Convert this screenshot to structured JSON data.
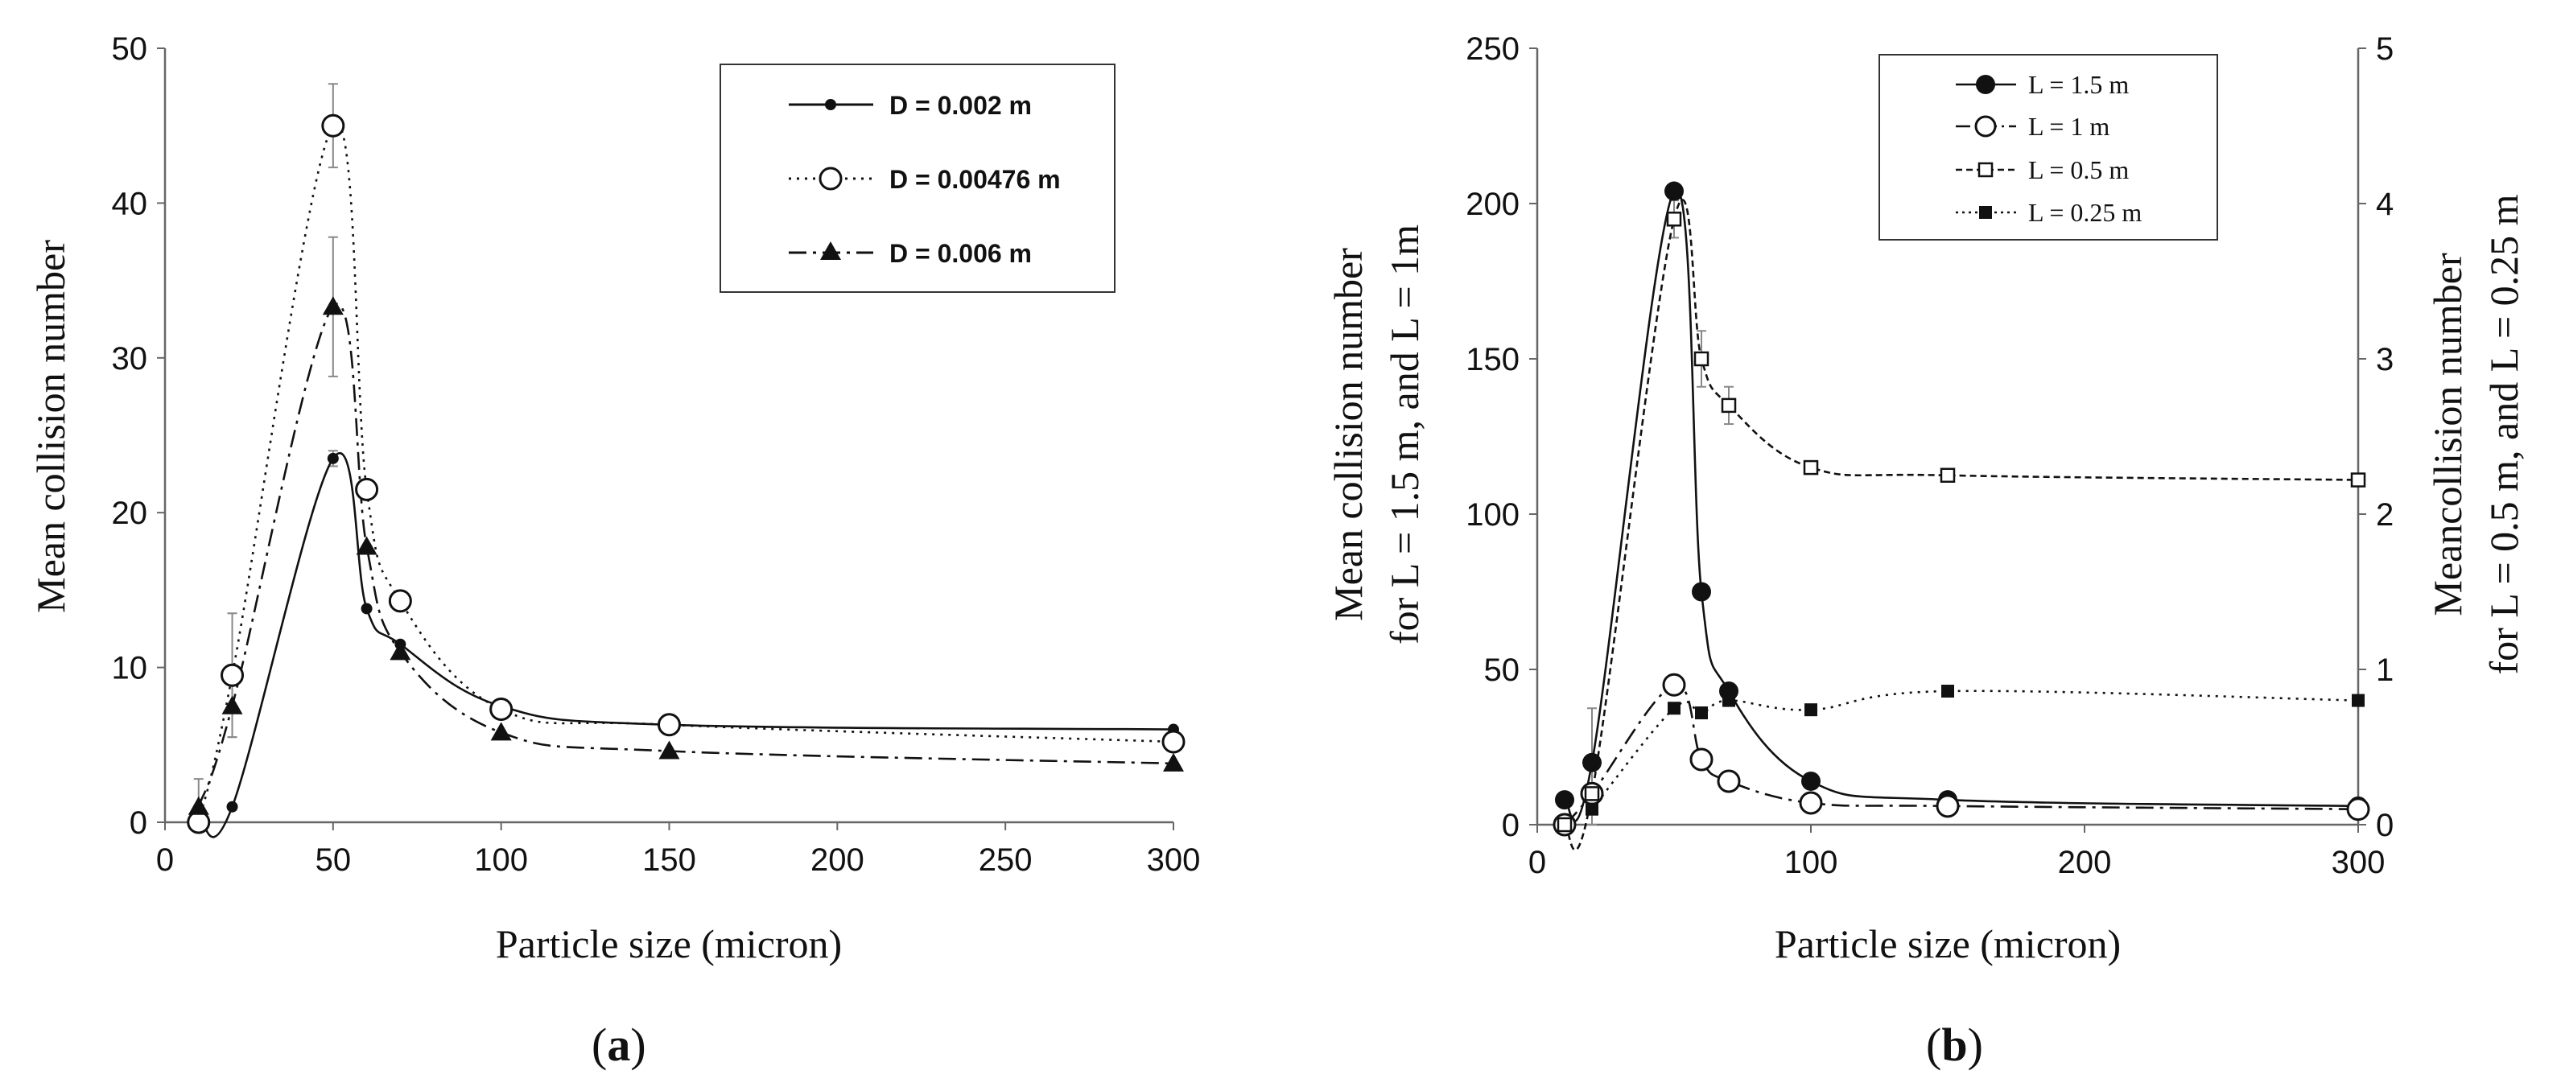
{
  "chart_data": [
    {
      "type": "line",
      "panel_label": "a",
      "xlabel": "Particle size (micron)",
      "ylabel": "Mean collision number",
      "xlim": [
        0,
        300
      ],
      "ylim": [
        0,
        50
      ],
      "xticks": [
        0,
        50,
        100,
        150,
        200,
        250,
        300
      ],
      "yticks": [
        0,
        10,
        20,
        30,
        40,
        50
      ],
      "legend_position": "top-right",
      "series": [
        {
          "name": "D = 0.002 m",
          "marker": "dot",
          "line": "solid",
          "x": [
            10,
            20,
            50,
            60,
            70,
            100,
            150,
            300
          ],
          "y": [
            0.5,
            1.0,
            23.5,
            13.8,
            11.5,
            7.5,
            6.3,
            6.0
          ],
          "err": [
            0,
            0,
            0.5,
            0,
            0,
            0,
            0,
            0
          ]
        },
        {
          "name": "D = 0.00476 m",
          "marker": "open-circle",
          "line": "dotted",
          "x": [
            10,
            20,
            50,
            60,
            70,
            100,
            150,
            300
          ],
          "y": [
            0,
            9.5,
            45.0,
            21.5,
            14.3,
            7.3,
            6.3,
            5.2
          ],
          "err": [
            0,
            4.0,
            2.7,
            0,
            0,
            0,
            0,
            0
          ]
        },
        {
          "name": "D = 0.006 m",
          "marker": "triangle",
          "line": "dash-dot",
          "x": [
            10,
            20,
            50,
            60,
            70,
            100,
            150,
            300
          ],
          "y": [
            1.0,
            7.5,
            33.3,
            17.8,
            11.0,
            5.8,
            4.6,
            3.8
          ],
          "err": [
            1.8,
            2.0,
            4.5,
            0,
            0,
            0,
            0,
            0
          ]
        }
      ]
    },
    {
      "type": "line",
      "panel_label": "b",
      "xlabel": "Particle size (micron)",
      "ylabel_left_line1": "Mean collision number",
      "ylabel_left_line2": "for L = 1.5 m, and L = 1m",
      "ylabel_right_line1": "Meancollision number",
      "ylabel_right_line2": "for L = 0.5 m, and L = 0.25 m",
      "xlim": [
        0,
        300
      ],
      "ylim_left": [
        0,
        250
      ],
      "ylim_right": [
        0,
        5
      ],
      "xticks": [
        0,
        100,
        200,
        300
      ],
      "yticks_left": [
        0,
        50,
        100,
        150,
        200,
        250
      ],
      "yticks_right": [
        0,
        1,
        2,
        3,
        4,
        5
      ],
      "legend_position": "top-center",
      "series": [
        {
          "name": "L = 1.5 m",
          "marker": "filled-circle",
          "line": "solid",
          "axis": "left",
          "x": [
            10,
            20,
            50,
            60,
            70,
            100,
            150,
            300
          ],
          "y": [
            8,
            20,
            204,
            75,
            43,
            14,
            8,
            6
          ],
          "err": [
            0,
            0,
            0,
            0,
            0,
            0,
            0,
            0
          ]
        },
        {
          "name": "L = 1 m",
          "marker": "open-circle",
          "line": "dash-dot",
          "axis": "left",
          "x": [
            10,
            20,
            50,
            60,
            70,
            100,
            150,
            300
          ],
          "y": [
            0,
            10,
            45,
            21,
            14,
            7,
            6,
            5
          ],
          "err": [
            0,
            0,
            0,
            0,
            0,
            0,
            0,
            0
          ]
        },
        {
          "name": "L = 0.5 m",
          "marker": "open-square",
          "line": "dashed",
          "axis": "right",
          "x": [
            10,
            20,
            50,
            60,
            70,
            100,
            150,
            300
          ],
          "y": [
            0,
            0.2,
            3.9,
            3.0,
            2.7,
            2.3,
            2.25,
            2.22
          ],
          "err": [
            0,
            0.55,
            0.12,
            0.18,
            0.12,
            0,
            0,
            0
          ]
        },
        {
          "name": "L = 0.25 m",
          "marker": "filled-square",
          "line": "dotted",
          "axis": "right",
          "x": [
            20,
            50,
            60,
            70,
            100,
            150,
            300
          ],
          "y": [
            0.1,
            0.75,
            0.72,
            0.8,
            0.74,
            0.86,
            0.8
          ],
          "err": [
            0,
            0,
            0,
            0,
            0,
            0,
            0
          ]
        }
      ]
    }
  ]
}
